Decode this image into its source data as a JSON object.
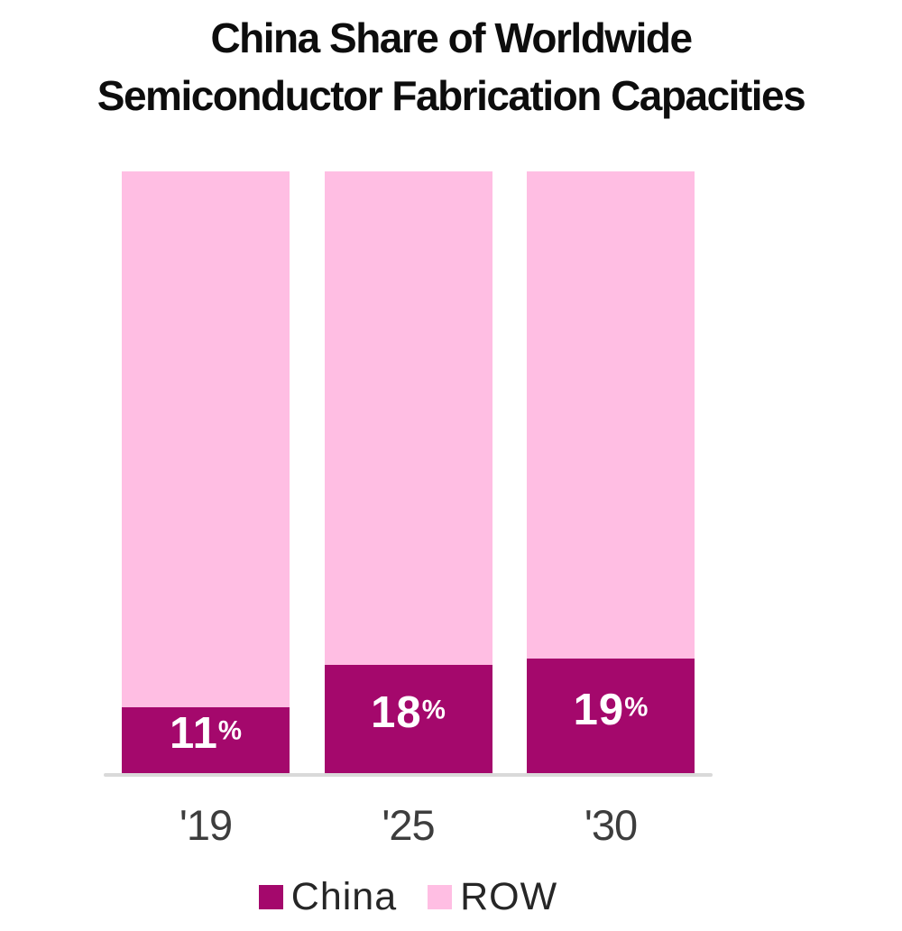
{
  "title": {
    "line1": "China Share of Worldwide",
    "line2": "Semiconductor Fabrication Capacities"
  },
  "colors": {
    "china": "#A4086C",
    "row": "#FFBEE3",
    "axis_line": "#D9D9D9",
    "title_text": "#0D0D0D",
    "x_label_text": "#3D3D3D",
    "legend_text": "#262626",
    "data_label_text": "#FFFFFF",
    "background": "#FFFFFF"
  },
  "legend": {
    "items": [
      {
        "label": "China",
        "color": "#A4086C"
      },
      {
        "label": "ROW",
        "color": "#FFBEE3"
      }
    ]
  },
  "chart_data": {
    "type": "bar",
    "stacked": true,
    "title": "China Share of Worldwide Semiconductor Fabrication Capacities",
    "categories": [
      "'19",
      "'25",
      "'30"
    ],
    "series": [
      {
        "name": "China",
        "values": [
          11,
          18,
          19
        ],
        "color": "#A4086C"
      },
      {
        "name": "ROW",
        "values": [
          89,
          82,
          81
        ],
        "color": "#FFBEE3"
      }
    ],
    "data_labels": [
      "11%",
      "18%",
      "19%"
    ],
    "xlabel": "",
    "ylabel": "",
    "ylim": [
      0,
      100
    ],
    "grid": false,
    "y_axis_visible": false,
    "legend_position": "bottom"
  }
}
